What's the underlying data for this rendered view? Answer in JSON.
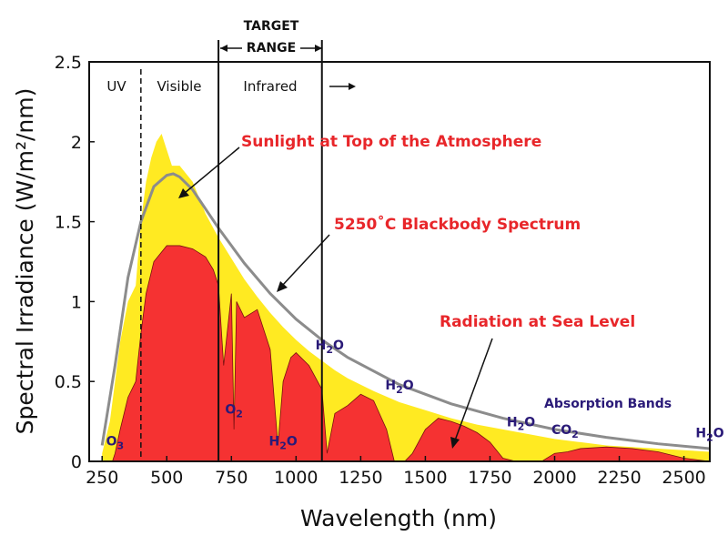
{
  "chart_data": {
    "type": "area",
    "xlabel": "Wavelength (nm)",
    "ylabel": "Spectral Irradiance (W/m²/nm)",
    "xlim": [
      200,
      2600
    ],
    "ylim": [
      0,
      2.5
    ],
    "x_ticks": [
      "250",
      "500",
      "750",
      "1000",
      "1250",
      "1500",
      "1750",
      "2000",
      "2250",
      "2500"
    ],
    "y_ticks": [
      "0",
      "0.5",
      "1",
      "1.5",
      "2",
      "2.5"
    ],
    "grid": false,
    "colors": {
      "top_of_atmosphere": "#ffea22",
      "sea_level": "#f53232",
      "blackbody": "#8c8c8c"
    },
    "series": [
      {
        "name": "Sunlight at Top of the Atmosphere",
        "x": [
          250,
          280,
          300,
          320,
          350,
          380,
          400,
          420,
          440,
          460,
          480,
          500,
          520,
          550,
          600,
          650,
          700,
          750,
          800,
          850,
          900,
          950,
          1000,
          1050,
          1100,
          1150,
          1200,
          1300,
          1400,
          1500,
          1600,
          1700,
          1800,
          1900,
          2000,
          2100,
          2200,
          2300,
          2400,
          2500,
          2600
        ],
        "y": [
          0.05,
          0.25,
          0.5,
          0.75,
          1.0,
          1.1,
          1.5,
          1.75,
          1.9,
          2.0,
          2.05,
          1.95,
          1.85,
          1.85,
          1.75,
          1.55,
          1.4,
          1.27,
          1.14,
          1.03,
          0.93,
          0.84,
          0.76,
          0.69,
          0.63,
          0.57,
          0.52,
          0.44,
          0.37,
          0.32,
          0.27,
          0.23,
          0.2,
          0.17,
          0.14,
          0.12,
          0.1,
          0.09,
          0.08,
          0.07,
          0.06
        ]
      },
      {
        "name": "5250˚C Blackbody Spectrum",
        "x": [
          250,
          300,
          350,
          400,
          450,
          500,
          525,
          550,
          600,
          650,
          700,
          800,
          900,
          1000,
          1100,
          1200,
          1400,
          1600,
          1800,
          2000,
          2200,
          2400,
          2600
        ],
        "y": [
          0.1,
          0.6,
          1.15,
          1.5,
          1.72,
          1.79,
          1.8,
          1.78,
          1.7,
          1.58,
          1.46,
          1.24,
          1.05,
          0.89,
          0.76,
          0.65,
          0.48,
          0.36,
          0.27,
          0.2,
          0.15,
          0.11,
          0.08
        ]
      },
      {
        "name": "Radiation at Sea Level",
        "x": [
          290,
          300,
          320,
          350,
          380,
          400,
          420,
          450,
          500,
          550,
          600,
          650,
          680,
          700,
          720,
          750,
          760,
          770,
          800,
          850,
          900,
          930,
          950,
          980,
          1000,
          1050,
          1100,
          1120,
          1150,
          1200,
          1250,
          1300,
          1350,
          1380,
          1420,
          1450,
          1500,
          1550,
          1600,
          1650,
          1700,
          1750,
          1800,
          1850,
          1950,
          2000,
          2050,
          2100,
          2200,
          2300,
          2400,
          2450,
          2500,
          2600
        ],
        "y": [
          0.0,
          0.05,
          0.2,
          0.4,
          0.5,
          0.8,
          1.05,
          1.25,
          1.35,
          1.35,
          1.33,
          1.28,
          1.2,
          1.1,
          0.6,
          1.05,
          0.2,
          1.0,
          0.9,
          0.95,
          0.7,
          0.1,
          0.5,
          0.65,
          0.68,
          0.6,
          0.45,
          0.05,
          0.3,
          0.35,
          0.42,
          0.38,
          0.2,
          0.0,
          0.0,
          0.05,
          0.2,
          0.27,
          0.25,
          0.22,
          0.18,
          0.12,
          0.02,
          0.0,
          0.0,
          0.05,
          0.06,
          0.08,
          0.09,
          0.08,
          0.06,
          0.04,
          0.02,
          0.0
        ]
      }
    ],
    "region_labels": [
      "UV",
      "Visible",
      "Infrared"
    ],
    "region_boundaries": [
      400,
      700,
      1100
    ],
    "target_range": {
      "label_line1": "TARGET",
      "label_line2": "RANGE",
      "start": 700,
      "end": 1100
    },
    "annotations": [
      {
        "text": "Sunlight at Top of the Atmosphere"
      },
      {
        "text": "5250˚C Blackbody Spectrum"
      },
      {
        "text": "Radiation at Sea Level"
      },
      {
        "text": "Absorption Bands"
      }
    ],
    "absorption_bands": [
      {
        "molecule": "O",
        "sub": "3",
        "x": 300,
        "y": 0.1
      },
      {
        "molecule": "O",
        "sub": "2",
        "x": 760,
        "y": 0.3
      },
      {
        "molecule": "H",
        "sub": "2",
        "suffix": "O",
        "x": 950,
        "y": 0.1
      },
      {
        "molecule": "H",
        "sub": "2",
        "suffix": "O",
        "x": 1130,
        "y": 0.7
      },
      {
        "molecule": "H",
        "sub": "2",
        "suffix": "O",
        "x": 1400,
        "y": 0.45
      },
      {
        "molecule": "H",
        "sub": "2",
        "suffix": "O",
        "x": 1870,
        "y": 0.22
      },
      {
        "molecule": "CO",
        "sub": "2",
        "x": 2040,
        "y": 0.17
      },
      {
        "molecule": "H",
        "sub": "2",
        "suffix": "O",
        "x": 2600,
        "y": 0.15
      }
    ]
  }
}
